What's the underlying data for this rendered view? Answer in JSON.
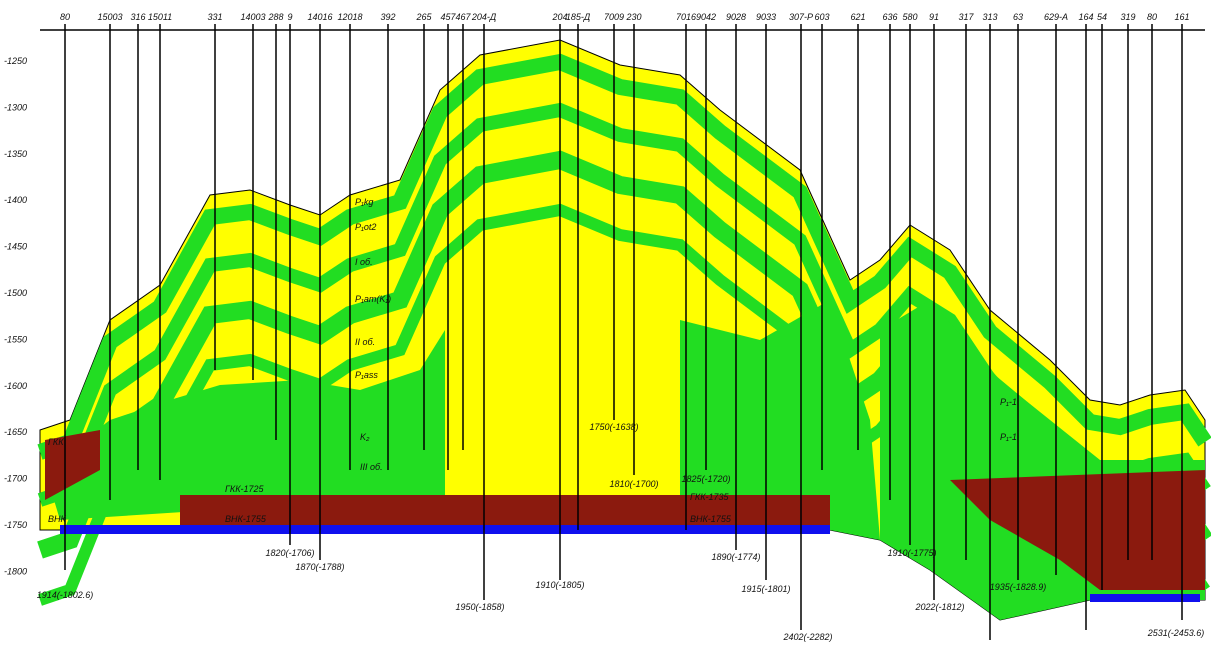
{
  "wells": [
    "80",
    "15003",
    "316",
    "15011",
    "331",
    "14003",
    "288",
    "9",
    "14016",
    "12018",
    "392",
    "265",
    "457",
    "467",
    "204-Д",
    "204",
    "185-Д",
    "7009",
    "230",
    "7016",
    "9042",
    "9028",
    "9033",
    "307-Р",
    "603",
    "621",
    "636",
    "580",
    "91",
    "317",
    "313",
    "63",
    "629-А",
    "164",
    "54",
    "319",
    "80",
    "161"
  ],
  "depth_axis": [
    "-1250",
    "-1300",
    "-1350",
    "-1400",
    "-1450",
    "-1500",
    "-1550",
    "-1600",
    "-1650",
    "-1700",
    "-1750",
    "-1800"
  ],
  "well_bottoms": [
    "1914(-1802.6)",
    "1820(-1706)",
    "1870(-1788)",
    "1950(-1858)",
    "1910(-1805)",
    "1750(-1638)",
    "1810(-1700)",
    "1825(-1720)",
    "1890(-1774)",
    "1915(-1801)",
    "2402(-2282)",
    "1910(-1775)",
    "2022(-1812)",
    "1935(-1828.9)",
    "2531(-2453.6)"
  ],
  "annotations": [
    "P₁kg",
    "P₁ot2",
    "I об.",
    "P₁am(K₁)",
    "II об.",
    "P₁ass",
    "K₂",
    "III об.",
    "ГКК-1725",
    "ВНК-1755",
    "ГКК-1735",
    "ВНК-1755",
    "ГКК",
    "ВНК",
    "P₁-1",
    "P₁-1"
  ]
}
